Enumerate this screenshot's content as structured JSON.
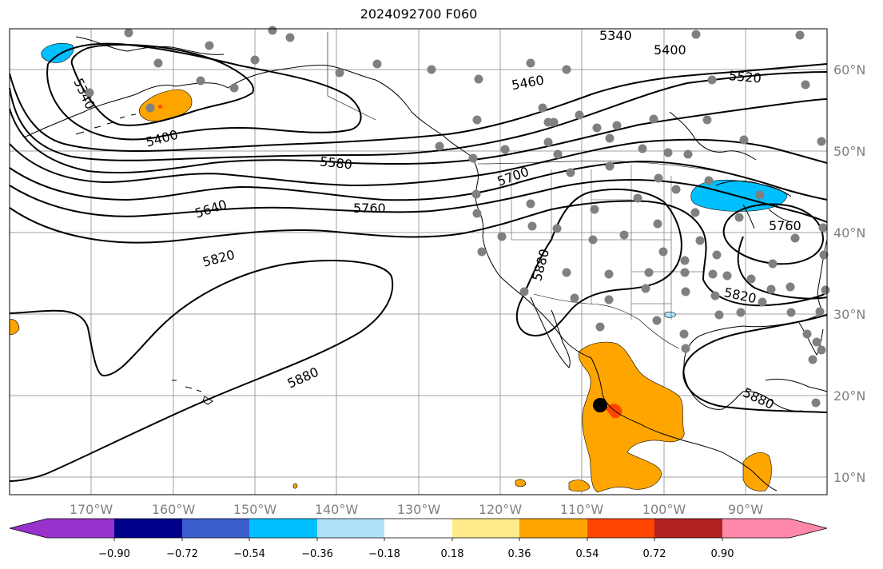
{
  "title": "2024092700 F060",
  "map": {
    "lon_ticks": [
      "170°W",
      "160°W",
      "150°W",
      "140°W",
      "130°W",
      "120°W",
      "110°W",
      "100°W",
      "90°W"
    ],
    "lat_ticks": [
      "60°N",
      "50°N",
      "40°N",
      "30°N",
      "20°N",
      "10°N"
    ],
    "contours": [
      {
        "label": "5340"
      },
      {
        "label": "5340"
      },
      {
        "label": "5400"
      },
      {
        "label": "5400"
      },
      {
        "label": "5460"
      },
      {
        "label": "5520"
      },
      {
        "label": "5580"
      },
      {
        "label": "5640"
      },
      {
        "label": "5700"
      },
      {
        "label": "5760"
      },
      {
        "label": "5760"
      },
      {
        "label": "5820"
      },
      {
        "label": "5820"
      },
      {
        "label": "5880"
      },
      {
        "label": "5880"
      },
      {
        "label": "5880"
      }
    ],
    "shading_colors": {
      "orange": "#ffa500",
      "red_orange": "#ff4500",
      "deep_sky_blue": "#00bfff",
      "light_blue": "#add8e6"
    },
    "station_dot_color": "#808080",
    "storm_marker_color": "#000000"
  },
  "colorbar": {
    "ticks": [
      "−0.90",
      "−0.72",
      "−0.54",
      "−0.36",
      "−0.18",
      "0.18",
      "0.36",
      "0.54",
      "0.72",
      "0.90"
    ],
    "colors": [
      "#9932cc",
      "#00008b",
      "#3a5fcd",
      "#00bfff",
      "#afe1fa",
      "#ffffff",
      "#ffeb8a",
      "#ffa500",
      "#ff4500",
      "#b22222",
      "#ff88aa"
    ]
  }
}
